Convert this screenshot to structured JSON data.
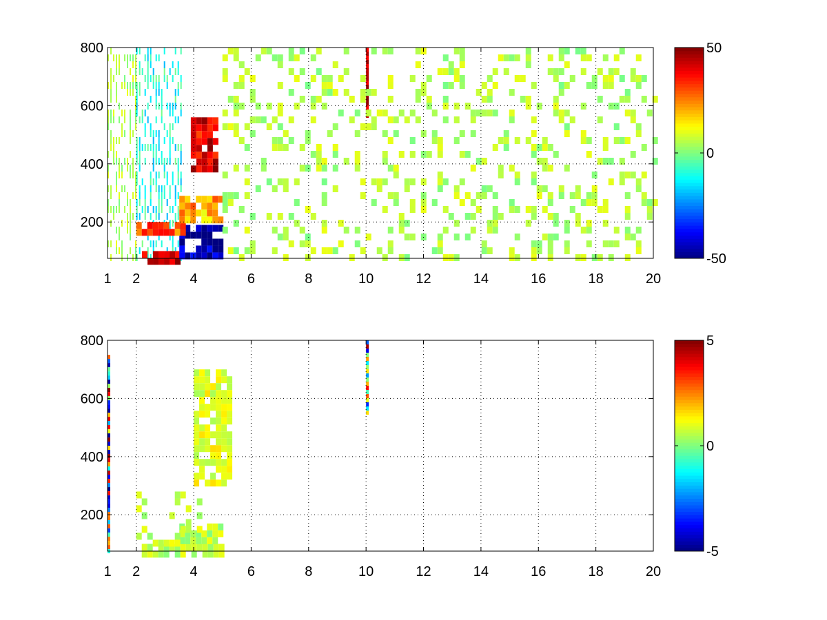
{
  "chart_data": [
    {
      "type": "heatmap",
      "title": "",
      "xlabel": "",
      "ylabel": "",
      "xlim": [
        1,
        20
      ],
      "ylim": [
        75,
        800
      ],
      "xticks": [
        1,
        2,
        4,
        6,
        8,
        10,
        12,
        14,
        16,
        18,
        20
      ],
      "yticks": [
        200,
        400,
        600,
        800
      ],
      "grid": true,
      "colormap": "jet",
      "colorbar": {
        "range": [
          -50,
          50
        ],
        "ticks": [
          -50,
          0,
          50
        ]
      },
      "features": [
        {
          "x": [
            1.0,
            2.0
          ],
          "y": [
            75,
            800
          ],
          "value": 5,
          "description": "dense vertical streaks"
        },
        {
          "x": [
            2.0,
            3.6
          ],
          "y": [
            75,
            800
          ],
          "value": -10,
          "description": "cyan vertical streaks"
        },
        {
          "x": [
            2.2,
            3.5
          ],
          "y": [
            75,
            100
          ],
          "value": 45,
          "description": "red band along bottom"
        },
        {
          "x": [
            3.5,
            5.0
          ],
          "y": [
            75,
            190
          ],
          "value": -45,
          "description": "blue block"
        },
        {
          "x": [
            2.0,
            3.6
          ],
          "y": [
            170,
            200
          ],
          "value": 30,
          "description": "orange band"
        },
        {
          "x": [
            3.5,
            5.0
          ],
          "y": [
            200,
            290
          ],
          "value": 20,
          "description": "yellow ridge"
        },
        {
          "x": [
            3.9,
            4.8
          ],
          "y": [
            380,
            560
          ],
          "value": 40,
          "description": "orange-red diagonal ridge"
        },
        {
          "x": [
            10.0,
            10.05
          ],
          "y": [
            560,
            800
          ],
          "value": 50,
          "description": "dark red vertical line"
        },
        {
          "x": [
            5.0,
            20.0
          ],
          "y": [
            75,
            800
          ],
          "value": 5,
          "description": "sparse green-yellow speckle"
        }
      ]
    },
    {
      "type": "heatmap",
      "title": "",
      "xlabel": "",
      "ylabel": "",
      "xlim": [
        1,
        20
      ],
      "ylim": [
        75,
        800
      ],
      "xticks": [
        1,
        2,
        4,
        6,
        8,
        10,
        12,
        14,
        16,
        18,
        20
      ],
      "yticks": [
        200,
        400,
        600,
        800
      ],
      "grid": true,
      "colormap": "jet",
      "colorbar": {
        "range": [
          -5,
          5
        ],
        "ticks": [
          -5,
          0,
          5
        ]
      },
      "features": [
        {
          "x": [
            2.0,
            4.9
          ],
          "y": [
            75,
            100
          ],
          "value": 0.6,
          "description": "light green base band"
        },
        {
          "x": [
            3.5,
            4.9
          ],
          "y": [
            100,
            170
          ],
          "value": 0.6,
          "description": "light green block"
        },
        {
          "x": [
            2.0,
            4.2
          ],
          "y": [
            100,
            280
          ],
          "value": 0.6,
          "description": "sparse light green"
        },
        {
          "x": [
            4.0,
            5.2
          ],
          "y": [
            300,
            700
          ],
          "value": 1.0,
          "description": "green-yellow diagonal"
        },
        {
          "x": [
            10.0,
            10.05
          ],
          "y": [
            550,
            800
          ],
          "value": 0,
          "description": "multicolor vertical line"
        },
        {
          "x": [
            1.0,
            1.05
          ],
          "y": [
            80,
            750
          ],
          "value": 0,
          "description": "thin multicolor line at left edge"
        }
      ]
    }
  ]
}
